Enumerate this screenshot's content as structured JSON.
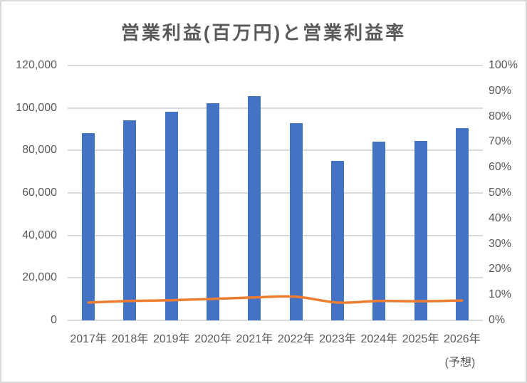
{
  "chart_data": {
    "type": "combo_bar_line",
    "title": "営業利益(百万円)と営業利益率",
    "categories": [
      "2017年",
      "2018年",
      "2019年",
      "2020年",
      "2021年",
      "2022年",
      "2023年",
      "2024年",
      "2025年",
      "2026年"
    ],
    "forecast_note": "(予想)",
    "series": [
      {
        "name": "営業利益(百万円)",
        "type": "bar",
        "axis": "left",
        "values": [
          88000,
          94300,
          98100,
          102400,
          105700,
          92700,
          75200,
          84100,
          84600,
          90500
        ]
      },
      {
        "name": "営業利益率",
        "type": "line",
        "axis": "right",
        "values": [
          7.0,
          7.6,
          7.9,
          8.4,
          9.0,
          9.3,
          7.0,
          7.6,
          7.5,
          7.8
        ]
      }
    ],
    "left_axis": {
      "min": 0,
      "max": 120000,
      "step": 20000,
      "tick_labels": [
        "0",
        "20,000",
        "40,000",
        "60,000",
        "80,000",
        "100,000",
        "120,000"
      ]
    },
    "right_axis": {
      "min": 0,
      "max": 100,
      "step": 10,
      "tick_labels": [
        "0%",
        "10%",
        "20%",
        "30%",
        "40%",
        "50%",
        "60%",
        "70%",
        "80%",
        "90%",
        "100%"
      ]
    },
    "grid": true,
    "legend_position": "none"
  },
  "colors": {
    "bar": "#4472C4",
    "line": "#ED7D31",
    "gridline": "#D9D9D9",
    "text": "#595959",
    "frame": "#D9D9D9",
    "background": "#FFFFFF"
  }
}
